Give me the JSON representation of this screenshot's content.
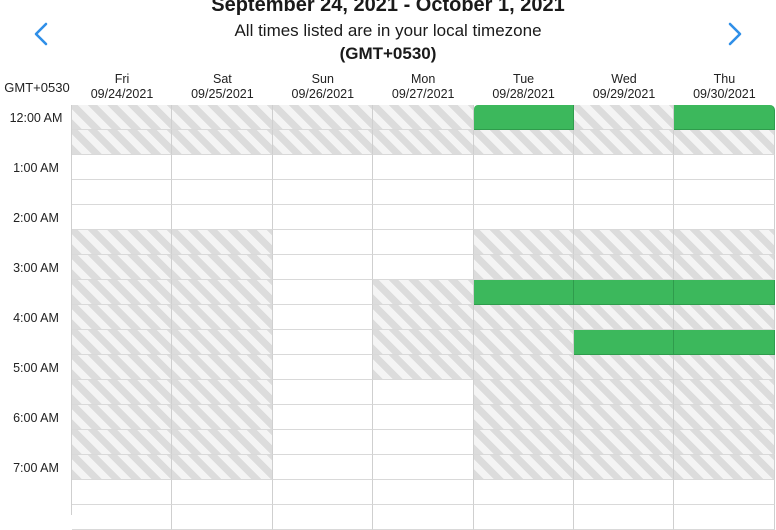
{
  "header": {
    "title": "September 24, 2021 - October 1, 2021",
    "subtitle": "All times listed are in your local timezone",
    "timezone": "(GMT+0530)",
    "prev_icon": "chevron-left-icon",
    "next_icon": "chevron-right-icon",
    "accent_color": "#2f8fe8"
  },
  "timezone_label": "GMT+0530",
  "days": [
    {
      "name": "Fri",
      "date": "09/24/2021"
    },
    {
      "name": "Sat",
      "date": "09/25/2021"
    },
    {
      "name": "Sun",
      "date": "09/26/2021"
    },
    {
      "name": "Mon",
      "date": "09/27/2021"
    },
    {
      "name": "Tue",
      "date": "09/28/2021"
    },
    {
      "name": "Wed",
      "date": "09/29/2021"
    },
    {
      "name": "Thu",
      "date": "09/30/2021"
    }
  ],
  "time_labels": [
    "12:00 AM",
    "1:00 AM",
    "2:00 AM",
    "3:00 AM",
    "4:00 AM",
    "5:00 AM",
    "6:00 AM",
    "7:00 AM"
  ],
  "slot_colors": {
    "blocked": "#dcdcdc",
    "available": "#ffffff",
    "selected": "#3cb85c"
  },
  "slots": [
    [
      "b",
      "b",
      "b",
      "b",
      "s",
      "b",
      "s"
    ],
    [
      "b",
      "b",
      "b",
      "b",
      "b",
      "b",
      "b"
    ],
    [
      "a",
      "a",
      "a",
      "a",
      "a",
      "a",
      "a"
    ],
    [
      "a",
      "a",
      "a",
      "a",
      "a",
      "a",
      "a"
    ],
    [
      "a",
      "a",
      "a",
      "a",
      "a",
      "a",
      "a"
    ],
    [
      "b",
      "b",
      "a",
      "a",
      "b",
      "b",
      "b"
    ],
    [
      "b",
      "b",
      "a",
      "a",
      "b",
      "b",
      "b"
    ],
    [
      "b",
      "b",
      "a",
      "b",
      "s",
      "s",
      "s"
    ],
    [
      "b",
      "b",
      "a",
      "b",
      "b",
      "b",
      "b"
    ],
    [
      "b",
      "b",
      "a",
      "b",
      "b",
      "s",
      "s"
    ],
    [
      "b",
      "b",
      "a",
      "b",
      "b",
      "b",
      "b"
    ],
    [
      "b",
      "b",
      "a",
      "a",
      "b",
      "b",
      "b"
    ],
    [
      "b",
      "b",
      "a",
      "a",
      "b",
      "b",
      "b"
    ],
    [
      "b",
      "b",
      "a",
      "a",
      "b",
      "b",
      "b"
    ],
    [
      "b",
      "b",
      "a",
      "a",
      "b",
      "b",
      "b"
    ],
    [
      "a",
      "a",
      "a",
      "a",
      "a",
      "a",
      "a"
    ],
    [
      "a",
      "a",
      "a",
      "a",
      "a",
      "a",
      "a"
    ]
  ]
}
